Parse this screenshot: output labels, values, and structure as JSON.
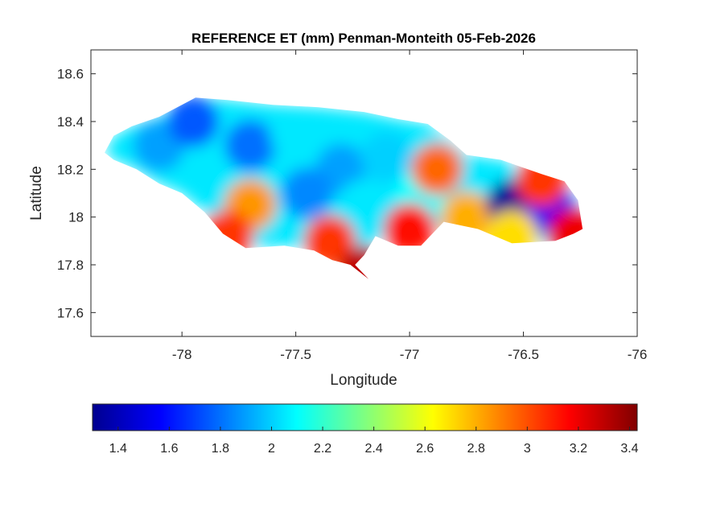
{
  "chart_data": {
    "type": "heatmap",
    "title": "REFERENCE ET (mm) Penman-Monteith 05-Feb-2026",
    "xlabel": "Longitude",
    "ylabel": "Latitude",
    "xlim": [
      -78.4,
      -76
    ],
    "ylim": [
      17.5,
      18.7
    ],
    "x_ticks": [
      -78,
      -77.5,
      -77,
      -76.5,
      -76
    ],
    "y_ticks": [
      17.6,
      17.8,
      18,
      18.2,
      18.4,
      18.6
    ],
    "x_tick_labels": [
      "-78",
      "-77.5",
      "-77",
      "-76.5",
      "-76"
    ],
    "y_tick_labels": [
      "17.6",
      "17.8",
      "18",
      "18.2",
      "18.4",
      "18.6"
    ],
    "colormap": "jet",
    "colorbar": {
      "location": "bottom",
      "range": [
        1.3,
        3.43
      ],
      "ticks": [
        1.4,
        1.6,
        1.8,
        2,
        2.2,
        2.4,
        2.6,
        2.8,
        3,
        3.2,
        3.4
      ],
      "tick_labels": [
        "1.4",
        "1.6",
        "1.8",
        "2",
        "2.2",
        "2.4",
        "2.6",
        "2.8",
        "3",
        "3.2",
        "3.4"
      ]
    },
    "region_outline": [
      [
        -78.34,
        18.27
      ],
      [
        -78.3,
        18.34
      ],
      [
        -78.22,
        18.38
      ],
      [
        -78.1,
        18.42
      ],
      [
        -77.94,
        18.5
      ],
      [
        -77.8,
        18.49
      ],
      [
        -77.6,
        18.47
      ],
      [
        -77.4,
        18.46
      ],
      [
        -77.2,
        18.44
      ],
      [
        -77.05,
        18.41
      ],
      [
        -76.92,
        18.39
      ],
      [
        -76.82,
        18.32
      ],
      [
        -76.75,
        18.26
      ],
      [
        -76.6,
        18.24
      ],
      [
        -76.42,
        18.18
      ],
      [
        -76.32,
        18.15
      ],
      [
        -76.26,
        18.07
      ],
      [
        -76.24,
        17.95
      ],
      [
        -76.28,
        17.93
      ],
      [
        -76.36,
        17.9
      ],
      [
        -76.55,
        17.89
      ],
      [
        -76.7,
        17.95
      ],
      [
        -76.85,
        17.98
      ],
      [
        -76.95,
        17.88
      ],
      [
        -77.05,
        17.88
      ],
      [
        -77.15,
        17.92
      ],
      [
        -77.2,
        17.84
      ],
      [
        -77.24,
        17.8
      ],
      [
        -77.18,
        17.74
      ],
      [
        -77.26,
        17.8
      ],
      [
        -77.34,
        17.82
      ],
      [
        -77.42,
        17.86
      ],
      [
        -77.55,
        17.88
      ],
      [
        -77.72,
        17.87
      ],
      [
        -77.82,
        17.93
      ],
      [
        -77.9,
        18.02
      ],
      [
        -78.0,
        18.1
      ],
      [
        -78.1,
        18.14
      ],
      [
        -78.2,
        18.2
      ],
      [
        -78.3,
        18.24
      ]
    ],
    "value_centers": [
      {
        "lon": -78.1,
        "lat": 18.3,
        "value": 1.9
      },
      {
        "lon": -77.95,
        "lat": 18.4,
        "value": 1.75
      },
      {
        "lon": -77.7,
        "lat": 18.3,
        "value": 1.8
      },
      {
        "lon": -77.5,
        "lat": 18.35,
        "value": 2.05
      },
      {
        "lon": -77.3,
        "lat": 18.2,
        "value": 1.9
      },
      {
        "lon": -77.1,
        "lat": 18.25,
        "value": 2.0
      },
      {
        "lon": -77.45,
        "lat": 18.1,
        "value": 1.85
      },
      {
        "lon": -77.2,
        "lat": 18.05,
        "value": 2.05
      },
      {
        "lon": -76.95,
        "lat": 18.1,
        "value": 2.1
      },
      {
        "lon": -77.7,
        "lat": 18.05,
        "value": 2.85
      },
      {
        "lon": -77.8,
        "lat": 17.92,
        "value": 3.05
      },
      {
        "lon": -77.35,
        "lat": 17.9,
        "value": 3.05
      },
      {
        "lon": -77.2,
        "lat": 17.77,
        "value": 3.3
      },
      {
        "lon": -77.0,
        "lat": 17.95,
        "value": 3.15
      },
      {
        "lon": -76.88,
        "lat": 18.2,
        "value": 2.95
      },
      {
        "lon": -76.75,
        "lat": 18.0,
        "value": 2.8
      },
      {
        "lon": -76.55,
        "lat": 18.05,
        "value": 1.35
      },
      {
        "lon": -76.38,
        "lat": 18.03,
        "value": 1.55
      },
      {
        "lon": -76.42,
        "lat": 18.15,
        "value": 3.05
      },
      {
        "lon": -76.28,
        "lat": 17.93,
        "value": 3.2
      },
      {
        "lon": -76.55,
        "lat": 17.92,
        "value": 2.7
      }
    ]
  }
}
